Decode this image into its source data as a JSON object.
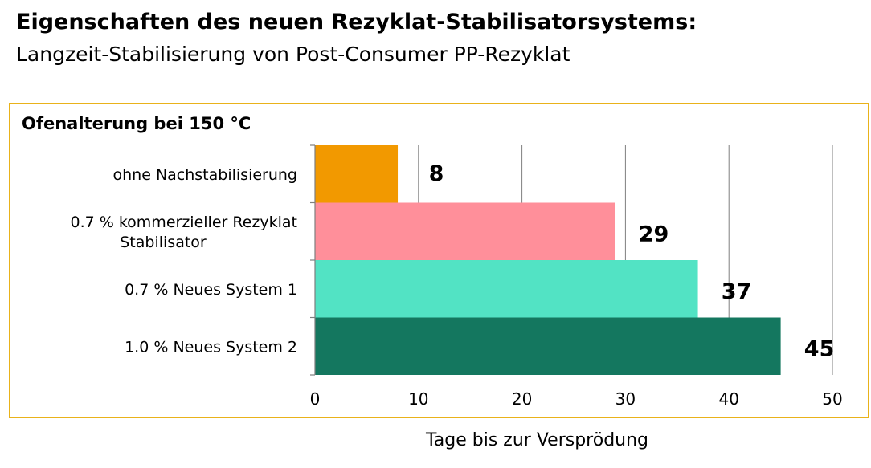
{
  "header": {
    "title": "Eigenschaften des neuen Rezyklat-Stabilisatorsystems:",
    "subtitle": "Langzeit-Stabilisierung von Post-Consumer PP-Rezyklat"
  },
  "chart_data": {
    "type": "bar",
    "orientation": "horizontal",
    "title": "Ofenalterung bei 150 °C",
    "xlabel": "Tage bis zur Versprödung",
    "ylabel": "",
    "categories": [
      [
        "ohne Nachstabilisierung"
      ],
      [
        "0.7 % kommerzieller Rezyklat",
        "Stabilisator"
      ],
      [
        "0.7  % Neues System 1"
      ],
      [
        "1.0 % Neues System 2"
      ]
    ],
    "values": [
      8,
      29,
      37,
      45
    ],
    "data_labels": [
      "8",
      "29",
      "37",
      "45"
    ],
    "colors": [
      "#f29900",
      "#ff8f9a",
      "#52e3c4",
      "#14775f"
    ],
    "xlim": [
      0,
      50
    ],
    "xticks": [
      0,
      10,
      20,
      30,
      40,
      50
    ],
    "xtick_labels": [
      "0",
      "10",
      "20",
      "30",
      "40",
      "50"
    ],
    "grid": "vertical",
    "frame_color": "#e9b21a"
  }
}
